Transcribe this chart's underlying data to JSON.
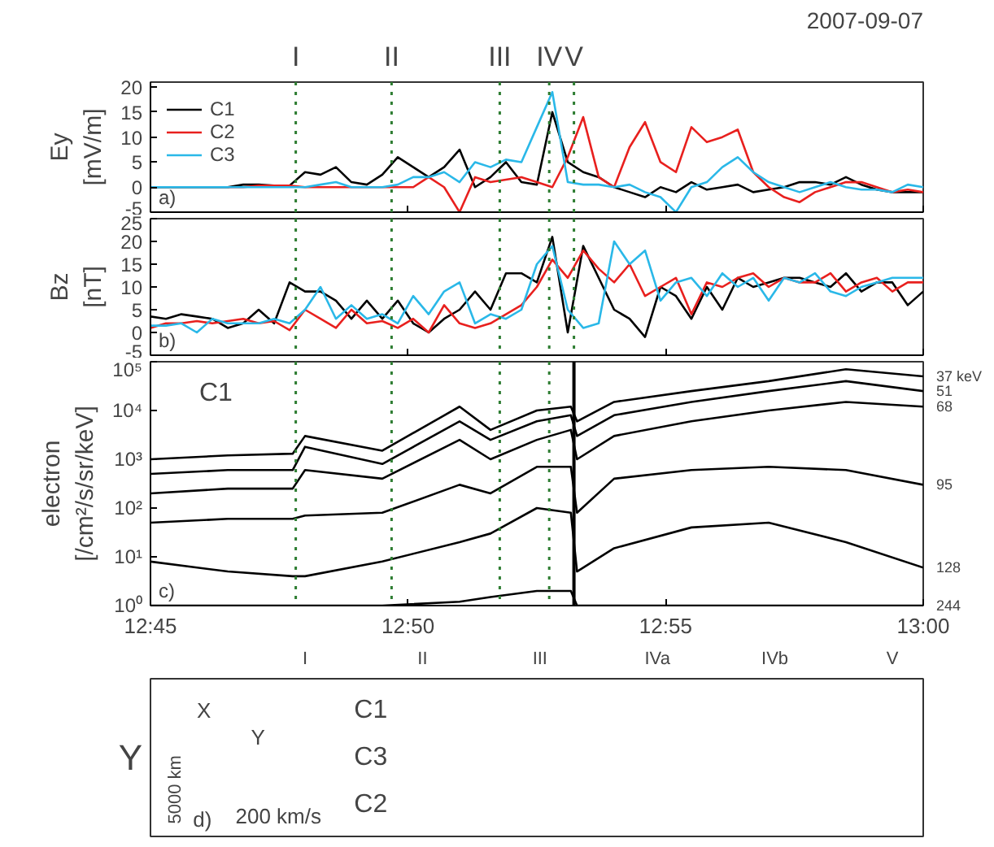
{
  "chart_data": [
    {
      "type": "line",
      "title": "2007-09-07",
      "ylabel": "Ey\n[mV/m]",
      "xlim": [
        12.75,
        13.0
      ],
      "ylim": [
        -5,
        21
      ],
      "yticks": [
        -5,
        0,
        5,
        10,
        15,
        20
      ],
      "xticks": [
        {
          "value": 12.75,
          "label": null
        },
        {
          "value": 12.83333,
          "label": null
        },
        {
          "value": 12.91667,
          "label": null
        },
        {
          "value": 13.0,
          "label": null
        }
      ],
      "tick_labels": "y",
      "legend": "top left",
      "grid": false,
      "x": [
        12.75,
        12.755,
        12.76,
        12.765,
        12.77,
        12.775,
        12.78,
        12.785,
        12.79,
        12.795,
        12.8,
        12.805,
        12.81,
        12.815,
        12.82,
        12.825,
        12.83,
        12.835,
        12.84,
        12.845,
        12.85,
        12.855,
        12.86,
        12.865,
        12.87,
        12.875,
        12.88,
        12.885,
        12.89,
        12.895,
        12.9,
        12.905,
        12.91,
        12.915,
        12.92,
        12.925,
        12.93,
        12.935,
        12.94,
        12.945,
        12.95,
        12.955,
        12.96,
        12.965,
        12.97,
        12.975,
        12.98,
        12.985,
        12.99,
        12.995,
        13.0
      ],
      "series": [
        {
          "name": "C1",
          "color": "#000000",
          "values": [
            0,
            0,
            0,
            0,
            0,
            0,
            0.5,
            0.5,
            0.3,
            0.3,
            3,
            2.5,
            4,
            1,
            0.5,
            2.5,
            6,
            4,
            2,
            4,
            7.5,
            0,
            2,
            5,
            1,
            0.5,
            15,
            5,
            3,
            2,
            0,
            -1,
            -2,
            0,
            -1,
            1,
            -0.5,
            0,
            0.5,
            -1,
            -0.5,
            0,
            1,
            1,
            0.5,
            2,
            0.5,
            -0.5,
            -1,
            -1,
            -1
          ]
        },
        {
          "name": "C2",
          "color": "#e8201e",
          "x": [
            12.775,
            12.78,
            12.785,
            12.79,
            12.795,
            12.8,
            12.805,
            12.81,
            12.815,
            12.82,
            12.825,
            12.83,
            12.835,
            12.84,
            12.845,
            12.85,
            12.855,
            12.86,
            12.865,
            12.87,
            12.875,
            12.88,
            12.885,
            12.89,
            12.895,
            12.9,
            12.905,
            12.91,
            12.915,
            12.92,
            12.925,
            12.93,
            12.935,
            12.94,
            12.945,
            12.95,
            12.955,
            12.96,
            12.965,
            12.97,
            12.975,
            12.98,
            12.985,
            12.99,
            12.995,
            13.0
          ],
          "values": [
            0,
            0,
            0.3,
            0.3,
            0.3,
            0,
            0,
            0,
            0,
            0,
            0,
            0,
            0,
            2,
            0,
            -5,
            2,
            1,
            1.5,
            2,
            1,
            0,
            6,
            14,
            2,
            0,
            8,
            13,
            5,
            3,
            12,
            9,
            10,
            11.5,
            3,
            0,
            -2,
            -3,
            -1,
            0,
            1,
            1,
            0,
            -1,
            -0.5,
            -1
          ]
        },
        {
          "name": "C3",
          "color": "#2ab8e8",
          "values": [
            0,
            0,
            0,
            0,
            0,
            0,
            0,
            0,
            0,
            0,
            0,
            0.5,
            1,
            0,
            0,
            0,
            0.5,
            2,
            2,
            3,
            1,
            5,
            4,
            5.5,
            5,
            12,
            19,
            1,
            0.5,
            0.5,
            0,
            0.5,
            -1,
            -2,
            -5,
            0,
            1,
            4,
            6,
            3,
            1,
            0,
            -1,
            0,
            1,
            0,
            -0.5,
            -0.5,
            -1,
            0.5,
            0
          ]
        }
      ],
      "ref_lines": [
        {
          "axis": "x",
          "value": 12.797,
          "label": "I",
          "color": "#2e7d32",
          "line_style": "dotted"
        },
        {
          "axis": "x",
          "value": 12.828,
          "label": "II",
          "color": "#2e7d32",
          "line_style": "dotted"
        },
        {
          "axis": "x",
          "value": 12.863,
          "label": "III",
          "color": "#2e7d32",
          "line_style": "dotted"
        },
        {
          "axis": "x",
          "value": 12.879,
          "label": "IV",
          "color": "#2e7d32",
          "line_style": "dotted"
        },
        {
          "axis": "x",
          "value": 12.887,
          "label": "V",
          "color": "#2e7d32",
          "line_style": "dotted"
        }
      ],
      "annotations": [
        "a)"
      ]
    },
    {
      "type": "line",
      "ylabel": "Bz\n[nT]",
      "xlim": [
        12.75,
        13.0
      ],
      "ylim": [
        -5,
        25
      ],
      "yticks": [
        -5,
        0,
        5,
        10,
        15,
        20,
        25
      ],
      "xticks": [
        {
          "value": 12.75,
          "label": null
        },
        {
          "value": 12.83333,
          "label": null
        },
        {
          "value": 12.91667,
          "label": null
        },
        {
          "value": 13.0,
          "label": null
        }
      ],
      "tick_labels": "y",
      "grid": false,
      "x": [
        12.75,
        12.755,
        12.76,
        12.765,
        12.77,
        12.775,
        12.78,
        12.785,
        12.79,
        12.795,
        12.8,
        12.805,
        12.81,
        12.815,
        12.82,
        12.825,
        12.83,
        12.835,
        12.84,
        12.845,
        12.85,
        12.855,
        12.86,
        12.865,
        12.87,
        12.875,
        12.88,
        12.885,
        12.89,
        12.895,
        12.9,
        12.905,
        12.91,
        12.915,
        12.92,
        12.925,
        12.93,
        12.935,
        12.94,
        12.945,
        12.95,
        12.955,
        12.96,
        12.965,
        12.97,
        12.975,
        12.98,
        12.985,
        12.99,
        12.995,
        13.0
      ],
      "series": [
        {
          "color": "#000000",
          "values": [
            3.5,
            3,
            4,
            3.5,
            3,
            1,
            2,
            5,
            2,
            11,
            9,
            9,
            7,
            3,
            7,
            3,
            7,
            2,
            0,
            3,
            5,
            9,
            5,
            13,
            13,
            11,
            21,
            0,
            19,
            12,
            5,
            3,
            -1,
            10,
            8,
            3,
            10,
            5,
            12,
            10,
            11,
            12,
            12,
            11,
            10,
            13,
            9,
            11,
            11,
            6,
            9
          ]
        },
        {
          "color": "#e8201e",
          "values": [
            1,
            2,
            2,
            2.5,
            2,
            2.5,
            3,
            2,
            2.5,
            0.5,
            5,
            3,
            1,
            5,
            2,
            2.5,
            1,
            3,
            0,
            6,
            2,
            1,
            2,
            4,
            6,
            10,
            16,
            12,
            18,
            14,
            11,
            15,
            8,
            10,
            12,
            4,
            11,
            10,
            12,
            13,
            10,
            12,
            11,
            11,
            13,
            9,
            11,
            12,
            9,
            11,
            11
          ]
        },
        {
          "color": "#2ab8e8",
          "values": [
            1.5,
            1.5,
            2,
            0,
            3,
            2,
            2,
            2,
            3,
            2,
            5,
            10,
            3,
            6,
            3,
            4,
            2,
            8,
            4,
            9,
            11,
            2,
            4,
            3,
            5,
            15,
            19,
            5,
            1,
            2,
            20,
            15,
            18,
            7,
            11,
            12,
            8,
            13,
            10,
            12,
            7,
            12,
            11,
            13,
            9,
            8,
            10,
            11,
            12,
            12,
            12
          ]
        }
      ],
      "ref_lines": [
        {
          "axis": "x",
          "value": 12.797,
          "color": "#2e7d32",
          "line_style": "dotted"
        },
        {
          "axis": "x",
          "value": 12.828,
          "color": "#2e7d32",
          "line_style": "dotted"
        },
        {
          "axis": "x",
          "value": 12.863,
          "color": "#2e7d32",
          "line_style": "dotted"
        },
        {
          "axis": "x",
          "value": 12.879,
          "color": "#2e7d32",
          "line_style": "dotted"
        },
        {
          "axis": "x",
          "value": 12.887,
          "color": "#2e7d32",
          "line_style": "dotted"
        }
      ],
      "annotations": [
        "b)"
      ]
    },
    {
      "type": "line",
      "ylabel": "electron\n[/cm²/s/sr/keV]",
      "log": "y",
      "xlim": [
        12.75,
        13.0
      ],
      "ylim": [
        1,
        100000
      ],
      "yticks": [
        {
          "value": 1,
          "label": "10⁰"
        },
        {
          "value": 10,
          "label": "10¹"
        },
        {
          "value": 100,
          "label": "10²"
        },
        {
          "value": 1000,
          "label": "10³"
        },
        {
          "value": 10000,
          "label": "10⁴"
        },
        {
          "value": 100000,
          "label": "10⁵"
        }
      ],
      "xticks": [
        {
          "value": 12.75,
          "label": "12:45"
        },
        {
          "value": 12.83333,
          "label": "12:50"
        },
        {
          "value": 12.91667,
          "label": "12:55"
        },
        {
          "value": 13.0,
          "label": "13:00"
        }
      ],
      "grid": false,
      "x": [
        12.75,
        12.775,
        12.796,
        12.8,
        12.825,
        12.85,
        12.86,
        12.875,
        12.886,
        12.888,
        12.9,
        12.925,
        12.95,
        12.975,
        13.0
      ],
      "series": [
        {
          "name": "37 keV",
          "color": "#000000",
          "values": [
            1000,
            1200,
            1300,
            3000,
            1500,
            12000,
            4000,
            10000,
            12000,
            6000,
            15000,
            25000,
            40000,
            70000,
            50000
          ]
        },
        {
          "name": "51",
          "color": "#000000",
          "values": [
            500,
            600,
            600,
            1800,
            800,
            6000,
            2500,
            6000,
            8000,
            3000,
            8000,
            15000,
            25000,
            40000,
            25000
          ]
        },
        {
          "name": "68",
          "color": "#000000",
          "values": [
            200,
            250,
            250,
            600,
            400,
            2500,
            1000,
            2500,
            4000,
            1000,
            3000,
            6000,
            10000,
            15000,
            12000
          ]
        },
        {
          "name": "95",
          "color": "#000000",
          "values": [
            50,
            60,
            60,
            70,
            80,
            300,
            200,
            700,
            700,
            80,
            400,
            600,
            700,
            600,
            300
          ]
        },
        {
          "name": "128",
          "color": "#000000",
          "values": [
            8,
            5,
            4,
            4,
            8,
            20,
            30,
            100,
            80,
            5,
            15,
            40,
            50,
            20,
            6
          ]
        },
        {
          "name": "244",
          "color": "#000000",
          "values": [
            1,
            1,
            1,
            1,
            1,
            1.2,
            1.5,
            2,
            2,
            1,
            1,
            1,
            1,
            1,
            1
          ]
        }
      ],
      "ref_lines": [
        {
          "axis": "x",
          "value": 12.797,
          "color": "#2e7d32",
          "line_style": "dotted"
        },
        {
          "axis": "x",
          "value": 12.828,
          "color": "#2e7d32",
          "line_style": "dotted"
        },
        {
          "axis": "x",
          "value": 12.863,
          "color": "#2e7d32",
          "line_style": "dotted"
        },
        {
          "axis": "x",
          "value": 12.879,
          "color": "#2e7d32",
          "line_style": "dotted"
        },
        {
          "axis": "x",
          "value": 12.887,
          "color": "#000000",
          "line_style": "solid"
        }
      ],
      "annotations": [
        "c)",
        "C1"
      ]
    },
    {
      "type": "other",
      "ylabel": "Y",
      "categories": [
        "I",
        "II",
        "III",
        "IVa",
        "IVb",
        "V"
      ],
      "y_categories": [
        "C1",
        "C3",
        "C2"
      ],
      "annotations": [
        "X",
        "Y",
        "5000 km",
        "200 km/s",
        "d)"
      ]
    }
  ]
}
